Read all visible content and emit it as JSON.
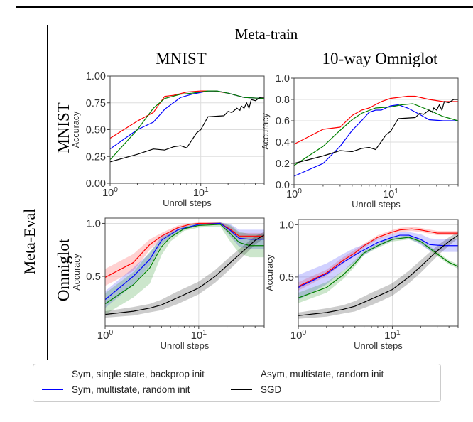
{
  "header": {
    "column_group": "Meta-train",
    "columns": [
      "MNIST",
      "10-way Omniglot"
    ],
    "row_group": "Meta-Eval",
    "rows": [
      "MNIST",
      "Omniglot"
    ]
  },
  "legend": {
    "placement": "bottom",
    "entries": [
      {
        "label": "Sym, single state, backprop init",
        "color": "#ff0000"
      },
      {
        "label": "Sym, multistate, random init",
        "color": "#0000ff"
      },
      {
        "label": "Asym, multistate, random init",
        "color": "#008000"
      },
      {
        "label": "SGD",
        "color": "#000000"
      }
    ]
  },
  "chart_data": [
    {
      "type": "line",
      "meta_train": "MNIST",
      "meta_eval": "MNIST",
      "xlabel": "Unroll steps",
      "ylabel": "Accuracy",
      "xscale": "log",
      "xlim": [
        1,
        50
      ],
      "ylim": [
        0,
        1
      ],
      "xticks": [
        "10^0",
        "10^1"
      ],
      "yticks": [
        "0.00",
        "0.25",
        "0.50",
        "0.75",
        "1.00"
      ],
      "ytick_values": [
        0,
        0.25,
        0.5,
        0.75,
        1.0
      ],
      "grid": true,
      "series": [
        {
          "name": "Sym, single state, backprop init",
          "x": [
            1,
            2,
            3,
            4,
            5,
            7,
            10,
            14,
            20,
            30,
            50
          ],
          "y": [
            0.42,
            0.58,
            0.66,
            0.81,
            0.82,
            0.85,
            0.86,
            0.86,
            0.84,
            0.8,
            0.79
          ]
        },
        {
          "name": "Sym, multistate, random init",
          "x": [
            1,
            2,
            3,
            4,
            6,
            8,
            12,
            15,
            20,
            30,
            50
          ],
          "y": [
            0.32,
            0.5,
            0.57,
            0.69,
            0.8,
            0.83,
            0.86,
            0.86,
            0.84,
            0.8,
            0.79
          ]
        },
        {
          "name": "Asym, multistate, random init",
          "x": [
            1,
            2,
            3,
            4,
            6,
            8,
            12,
            15,
            20,
            30,
            50
          ],
          "y": [
            0.22,
            0.5,
            0.7,
            0.79,
            0.83,
            0.84,
            0.86,
            0.86,
            0.84,
            0.8,
            0.79
          ]
        },
        {
          "name": "SGD",
          "x": [
            1,
            2,
            3,
            4,
            5,
            6,
            7,
            9,
            10,
            12,
            18,
            20,
            22,
            25,
            27,
            28,
            30,
            32,
            34,
            36,
            40,
            45,
            50
          ],
          "y": [
            0.2,
            0.27,
            0.32,
            0.31,
            0.34,
            0.35,
            0.33,
            0.47,
            0.5,
            0.62,
            0.63,
            0.67,
            0.66,
            0.7,
            0.68,
            0.72,
            0.7,
            0.75,
            0.7,
            0.78,
            0.77,
            0.8,
            0.8
          ]
        }
      ]
    },
    {
      "type": "line",
      "meta_train": "10-way Omniglot",
      "meta_eval": "MNIST",
      "xlabel": "Unroll steps",
      "ylabel": "Accuracy",
      "xscale": "log",
      "xlim": [
        1,
        50
      ],
      "ylim": [
        0,
        1
      ],
      "xticks": [
        "10^0",
        "10^1"
      ],
      "yticks": [
        "0.0",
        "0.2",
        "0.4",
        "0.6",
        "0.8",
        "1.0"
      ],
      "ytick_values": [
        0,
        0.2,
        0.4,
        0.6,
        0.8,
        1.0
      ],
      "grid": true,
      "series": [
        {
          "name": "Sym, single state, backprop init",
          "x": [
            1,
            2,
            3,
            4,
            5,
            6,
            8,
            10,
            15,
            18,
            25,
            35,
            50
          ],
          "y": [
            0.38,
            0.52,
            0.54,
            0.65,
            0.7,
            0.72,
            0.78,
            0.81,
            0.83,
            0.83,
            0.8,
            0.78,
            0.78
          ]
        },
        {
          "name": "Sym, multistate, random init",
          "x": [
            1,
            2,
            3,
            4,
            5,
            6,
            7,
            8,
            10,
            12,
            15,
            20,
            25,
            35,
            50
          ],
          "y": [
            0.08,
            0.2,
            0.36,
            0.51,
            0.6,
            0.68,
            0.7,
            0.7,
            0.74,
            0.75,
            0.72,
            0.66,
            0.61,
            0.6,
            0.6
          ]
        },
        {
          "name": "Asym, multistate, random init",
          "x": [
            1,
            2,
            3,
            4,
            5,
            7,
            10,
            13,
            17,
            25,
            35,
            50
          ],
          "y": [
            0.18,
            0.36,
            0.51,
            0.61,
            0.67,
            0.72,
            0.73,
            0.75,
            0.76,
            0.7,
            0.64,
            0.6
          ]
        },
        {
          "name": "SGD",
          "x": [
            1,
            2,
            3,
            4,
            5,
            6,
            7,
            9,
            10,
            12,
            18,
            20,
            22,
            25,
            27,
            28,
            30,
            32,
            34,
            36,
            40,
            45,
            50
          ],
          "y": [
            0.2,
            0.27,
            0.32,
            0.31,
            0.34,
            0.35,
            0.33,
            0.47,
            0.5,
            0.62,
            0.63,
            0.67,
            0.66,
            0.7,
            0.68,
            0.72,
            0.7,
            0.75,
            0.7,
            0.78,
            0.77,
            0.8,
            0.8
          ]
        }
      ]
    },
    {
      "type": "line",
      "meta_train": "MNIST",
      "meta_eval": "Omniglot",
      "xlabel": "Unroll steps",
      "ylabel": "Accuracy",
      "xscale": "log",
      "xlim": [
        1,
        50
      ],
      "ylim": [
        0.03,
        1.05
      ],
      "xticks": [
        "10^0",
        "10^1"
      ],
      "yticks": [
        "0.5",
        "1.0"
      ],
      "ytick_values": [
        0.5,
        1.0
      ],
      "grid": true,
      "series": [
        {
          "name": "Sym, single state, backprop init",
          "x": [
            1,
            2,
            3,
            4,
            6,
            8,
            10,
            15,
            17,
            22,
            27,
            35,
            50
          ],
          "y": [
            0.49,
            0.63,
            0.8,
            0.88,
            0.96,
            0.99,
            1.0,
            1.0,
            1.0,
            0.94,
            0.88,
            0.88,
            0.88
          ],
          "spread": [
            0.08,
            0.08,
            0.05,
            0.03,
            0.02,
            0.01,
            0.01,
            0.01,
            0.01,
            0.03,
            0.03,
            0.03,
            0.03
          ]
        },
        {
          "name": "Sym, multistate, random init",
          "x": [
            1,
            2,
            3,
            4,
            6,
            10,
            17,
            22,
            27,
            35,
            50
          ],
          "y": [
            0.28,
            0.5,
            0.66,
            0.84,
            0.94,
            0.99,
            1.0,
            0.93,
            0.86,
            0.85,
            0.85
          ],
          "spread": [
            0.08,
            0.08,
            0.06,
            0.04,
            0.02,
            0.01,
            0.01,
            0.06,
            0.08,
            0.09,
            0.09
          ]
        },
        {
          "name": "Asym, multistate, random init",
          "x": [
            1,
            2,
            3,
            4,
            5,
            7,
            10,
            17,
            22,
            27,
            35,
            50
          ],
          "y": [
            0.24,
            0.42,
            0.58,
            0.78,
            0.87,
            0.95,
            0.98,
            0.99,
            0.9,
            0.82,
            0.79,
            0.79
          ],
          "spread": [
            0.1,
            0.12,
            0.15,
            0.08,
            0.04,
            0.02,
            0.02,
            0.02,
            0.08,
            0.1,
            0.11,
            0.11
          ]
        },
        {
          "name": "SGD",
          "x": [
            1,
            2,
            3,
            4,
            6,
            8,
            10,
            15,
            20,
            30,
            40,
            50
          ],
          "y": [
            0.14,
            0.17,
            0.2,
            0.23,
            0.3,
            0.35,
            0.39,
            0.5,
            0.6,
            0.74,
            0.84,
            0.89
          ],
          "spread": [
            0.03,
            0.04,
            0.04,
            0.05,
            0.06,
            0.06,
            0.06,
            0.06,
            0.06,
            0.05,
            0.04,
            0.03
          ]
        }
      ]
    },
    {
      "type": "line",
      "meta_train": "10-way Omniglot",
      "meta_eval": "Omniglot",
      "xlabel": "Unroll steps",
      "ylabel": "Accuracy",
      "xscale": "log",
      "xlim": [
        1,
        50
      ],
      "ylim": [
        0.03,
        1.05
      ],
      "xticks": [
        "10^0",
        "10^1"
      ],
      "yticks": [
        "0.5",
        "1.0"
      ],
      "ytick_values": [
        0.5,
        1.0
      ],
      "grid": true,
      "series": [
        {
          "name": "Sym, single state, backprop init",
          "x": [
            1,
            2,
            3,
            4,
            5,
            7,
            10,
            12,
            16,
            20,
            30,
            50
          ],
          "y": [
            0.41,
            0.54,
            0.66,
            0.73,
            0.8,
            0.88,
            0.93,
            0.95,
            0.96,
            0.95,
            0.92,
            0.92
          ],
          "spread": [
            0.04,
            0.03,
            0.03,
            0.03,
            0.02,
            0.02,
            0.02,
            0.02,
            0.02,
            0.02,
            0.02,
            0.02
          ]
        },
        {
          "name": "Sym, multistate, random init",
          "x": [
            1,
            2,
            3,
            4,
            5,
            7,
            10,
            12,
            15,
            20,
            25,
            35,
            50
          ],
          "y": [
            0.4,
            0.53,
            0.64,
            0.71,
            0.76,
            0.83,
            0.88,
            0.9,
            0.9,
            0.86,
            0.81,
            0.8,
            0.8
          ],
          "spread": [
            0.12,
            0.1,
            0.08,
            0.07,
            0.05,
            0.04,
            0.03,
            0.03,
            0.03,
            0.05,
            0.06,
            0.06,
            0.06
          ]
        },
        {
          "name": "Asym, multistate, random init",
          "x": [
            1,
            2,
            3,
            4,
            5,
            7,
            10,
            15,
            20,
            30,
            40,
            50
          ],
          "y": [
            0.3,
            0.4,
            0.52,
            0.63,
            0.73,
            0.8,
            0.86,
            0.88,
            0.84,
            0.72,
            0.64,
            0.6
          ],
          "spread": [
            0.05,
            0.05,
            0.04,
            0.03,
            0.02,
            0.02,
            0.02,
            0.02,
            0.02,
            0.02,
            0.02,
            0.02
          ]
        },
        {
          "name": "SGD",
          "x": [
            1,
            2,
            3,
            4,
            6,
            8,
            10,
            15,
            20,
            30,
            40,
            50
          ],
          "y": [
            0.13,
            0.16,
            0.19,
            0.22,
            0.29,
            0.34,
            0.38,
            0.5,
            0.6,
            0.75,
            0.84,
            0.9
          ],
          "spread": [
            0.03,
            0.04,
            0.04,
            0.05,
            0.06,
            0.06,
            0.06,
            0.06,
            0.06,
            0.05,
            0.04,
            0.03
          ]
        }
      ]
    }
  ]
}
